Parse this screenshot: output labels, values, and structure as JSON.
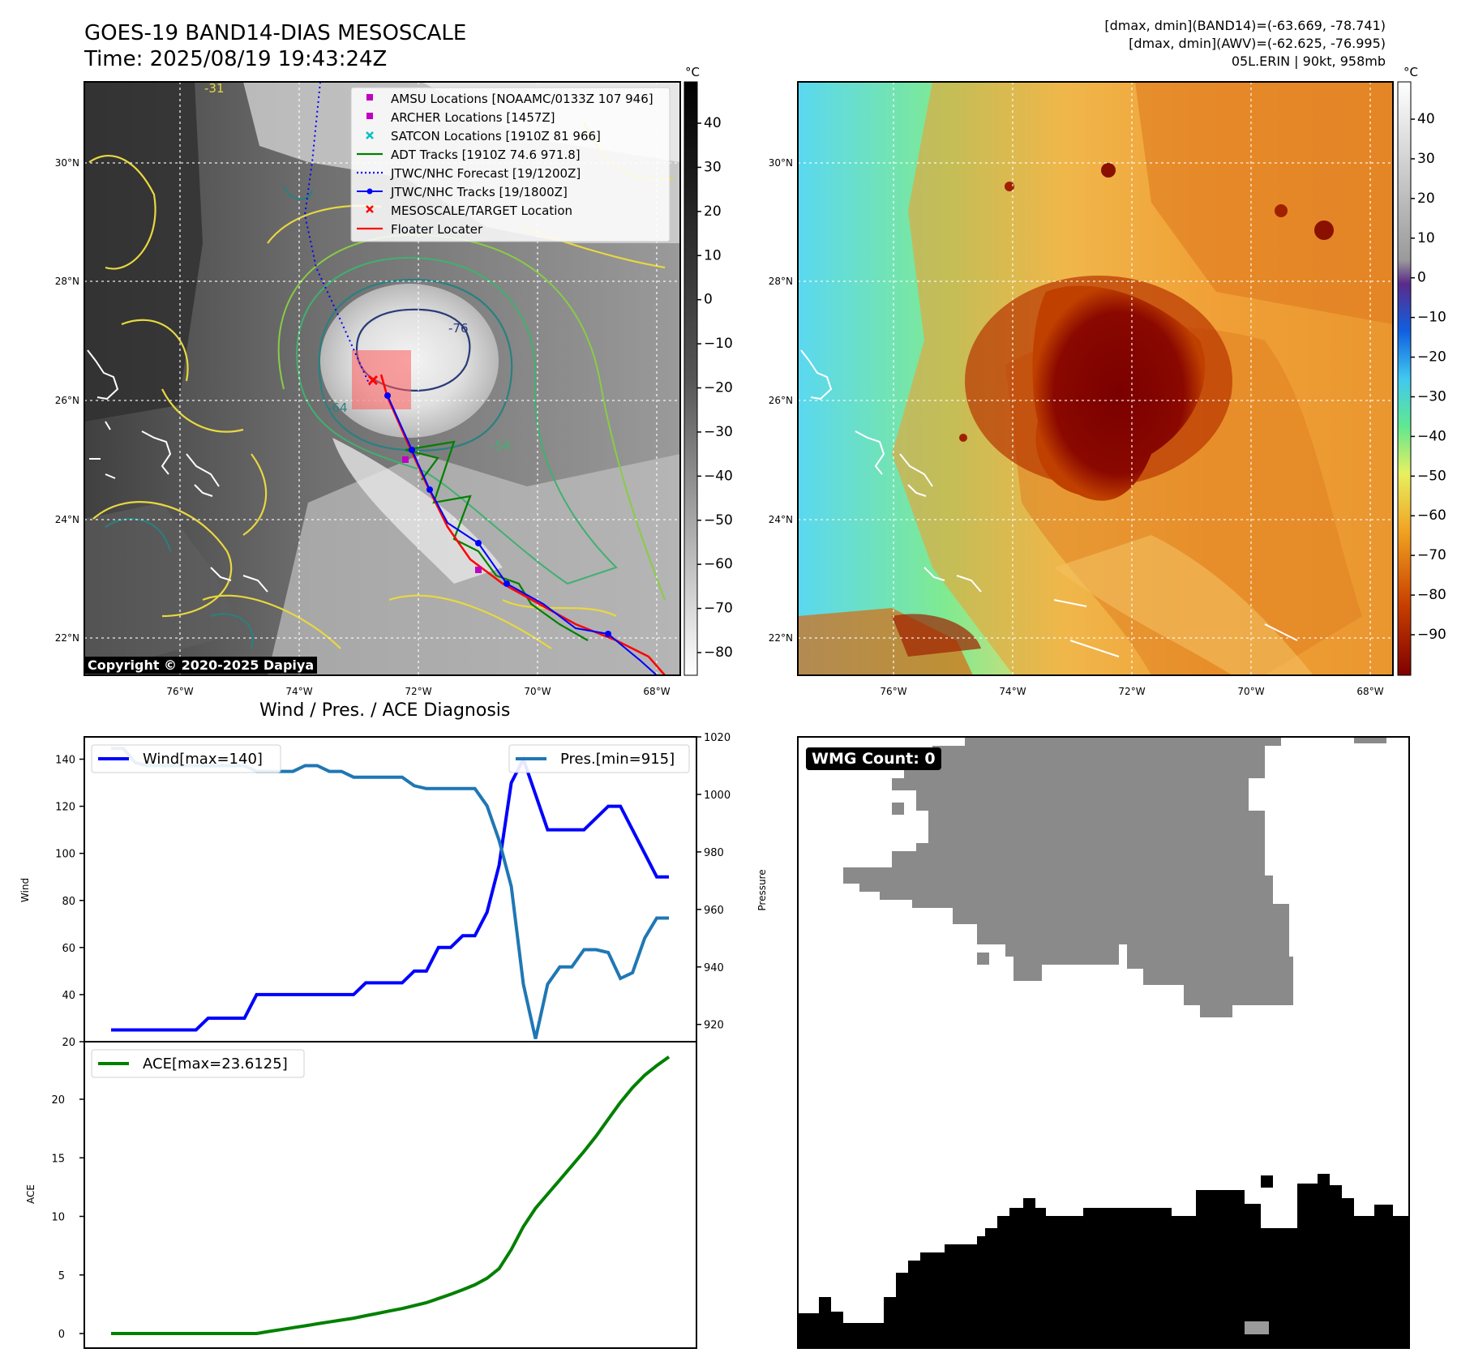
{
  "header": {
    "title_line1": "GOES-19 BAND14-DIAS MESOSCALE",
    "title_line2": "Time: 2025/08/19 19:43:24Z",
    "stats_line1": "[dmax, dmin](BAND14)=(-63.669, -78.741)",
    "stats_line2": "[dmax, dmin](AWV)=(-62.625, -76.995)",
    "stats_line3": "05L.ERIN | 90kt, 958mb",
    "copyright": "Copyright © 2020-2025 Dapiya"
  },
  "map": {
    "lon_ticks": [
      "76°W",
      "74°W",
      "72°W",
      "70°W",
      "68°W"
    ],
    "lat_ticks": [
      "30°N",
      "28°N",
      "26°N",
      "24°N",
      "22°N"
    ],
    "legend": [
      {
        "label": "AMSU Locations [NOAAMC/0133Z 107 946]",
        "color": "#c000c0",
        "marker": "square"
      },
      {
        "label": "ARCHER Locations [1457Z]",
        "color": "#c000c0",
        "marker": "square"
      },
      {
        "label": "SATCON Locations [1910Z 81 966]",
        "color": "#00c0c0",
        "marker": "x"
      },
      {
        "label": "ADT Tracks [1910Z 74.6 971.8]",
        "color": "#008000",
        "marker": "line"
      },
      {
        "label": "JTWC/NHC Forecast [19/1200Z]",
        "color": "#0000ff",
        "marker": "dotted"
      },
      {
        "label": "JTWC/NHC Tracks [19/1800Z]",
        "color": "#0000ff",
        "marker": "line-dot"
      },
      {
        "label": "MESOSCALE/TARGET Location",
        "color": "#ff0000",
        "marker": "x"
      },
      {
        "label": "Floater Locater",
        "color": "#ff0000",
        "marker": "line"
      }
    ],
    "contour_labels": [
      "-31",
      "-54",
      "-64",
      "-76"
    ]
  },
  "colorbar_gray": {
    "unit": "°C",
    "ticks": [
      "40",
      "30",
      "20",
      "10",
      "0",
      "−10",
      "−20",
      "−30",
      "−40",
      "−50",
      "−60",
      "−70",
      "−80"
    ]
  },
  "colorbar_color": {
    "unit": "°C",
    "ticks": [
      "40",
      "30",
      "20",
      "10",
      "0",
      "−10",
      "−20",
      "−30",
      "−40",
      "−50",
      "−60",
      "−70",
      "−80",
      "−90"
    ]
  },
  "diagnosis": {
    "title": "Wind / Pres. / ACE Diagnosis",
    "wind_ylabel": "Wind",
    "pres_ylabel": "Pressure",
    "ace_ylabel": "ACE",
    "wind_legend": "Wind[max=140]",
    "pres_legend": "Pres.[min=915]",
    "ace_legend": "ACE[max=23.6125]",
    "wind_ticks": [
      "140",
      "120",
      "100",
      "80",
      "60",
      "40",
      "20"
    ],
    "pres_ticks": [
      "1020",
      "1000",
      "980",
      "960",
      "940",
      "920"
    ],
    "ace_ticks": [
      "20",
      "15",
      "10",
      "5",
      "0"
    ]
  },
  "wmg": {
    "label": "WMG Count: 0"
  },
  "chart_data": [
    {
      "type": "line",
      "title": "",
      "xlabel": "",
      "ylabel": "Wind",
      "ylim": [
        20,
        145
      ],
      "series": [
        {
          "name": "Wind[max=140]",
          "color": "#0000ff",
          "values": [
            25,
            25,
            25,
            25,
            25,
            25,
            25,
            25,
            30,
            30,
            30,
            30,
            40,
            40,
            40,
            40,
            40,
            40,
            40,
            40,
            40,
            45,
            45,
            45,
            45,
            50,
            50,
            60,
            60,
            65,
            65,
            75,
            95,
            130,
            140,
            125,
            110,
            110,
            110,
            110,
            115,
            120,
            120,
            110,
            100,
            90,
            90
          ]
        }
      ]
    },
    {
      "type": "line",
      "title": "",
      "xlabel": "",
      "ylabel": "Pressure",
      "ylim": [
        914,
        1020
      ],
      "series": [
        {
          "name": "Pres.[min=915]",
          "color": "#1f77b4",
          "values": [
            1016,
            1016,
            1011,
            1010,
            1010,
            1010,
            1010,
            1010,
            1010,
            1010,
            1010,
            1010,
            1008,
            1008,
            1008,
            1008,
            1010,
            1010,
            1008,
            1008,
            1006,
            1006,
            1006,
            1006,
            1006,
            1003,
            1002,
            1002,
            1002,
            1002,
            1002,
            996,
            984,
            968,
            934,
            915,
            934,
            940,
            940,
            946,
            946,
            945,
            936,
            938,
            950,
            957,
            957
          ]
        }
      ]
    },
    {
      "type": "line",
      "title": "",
      "xlabel": "",
      "ylabel": "ACE",
      "ylim": [
        -1,
        24
      ],
      "series": [
        {
          "name": "ACE[max=23.6125]",
          "color": "#008000",
          "values": [
            0,
            0,
            0,
            0,
            0,
            0,
            0,
            0,
            0,
            0,
            0,
            0,
            0,
            0.17,
            0.33,
            0.5,
            0.66,
            0.83,
            0.99,
            1.15,
            1.31,
            1.52,
            1.72,
            1.93,
            2.13,
            2.38,
            2.63,
            2.99,
            3.35,
            3.74,
            4.16,
            4.72,
            5.54,
            7.17,
            9.13,
            10.69,
            11.9,
            13.11,
            14.32,
            15.54,
            16.86,
            18.3,
            19.74,
            20.99,
            22.05,
            22.87,
            23.61
          ]
        }
      ]
    }
  ]
}
